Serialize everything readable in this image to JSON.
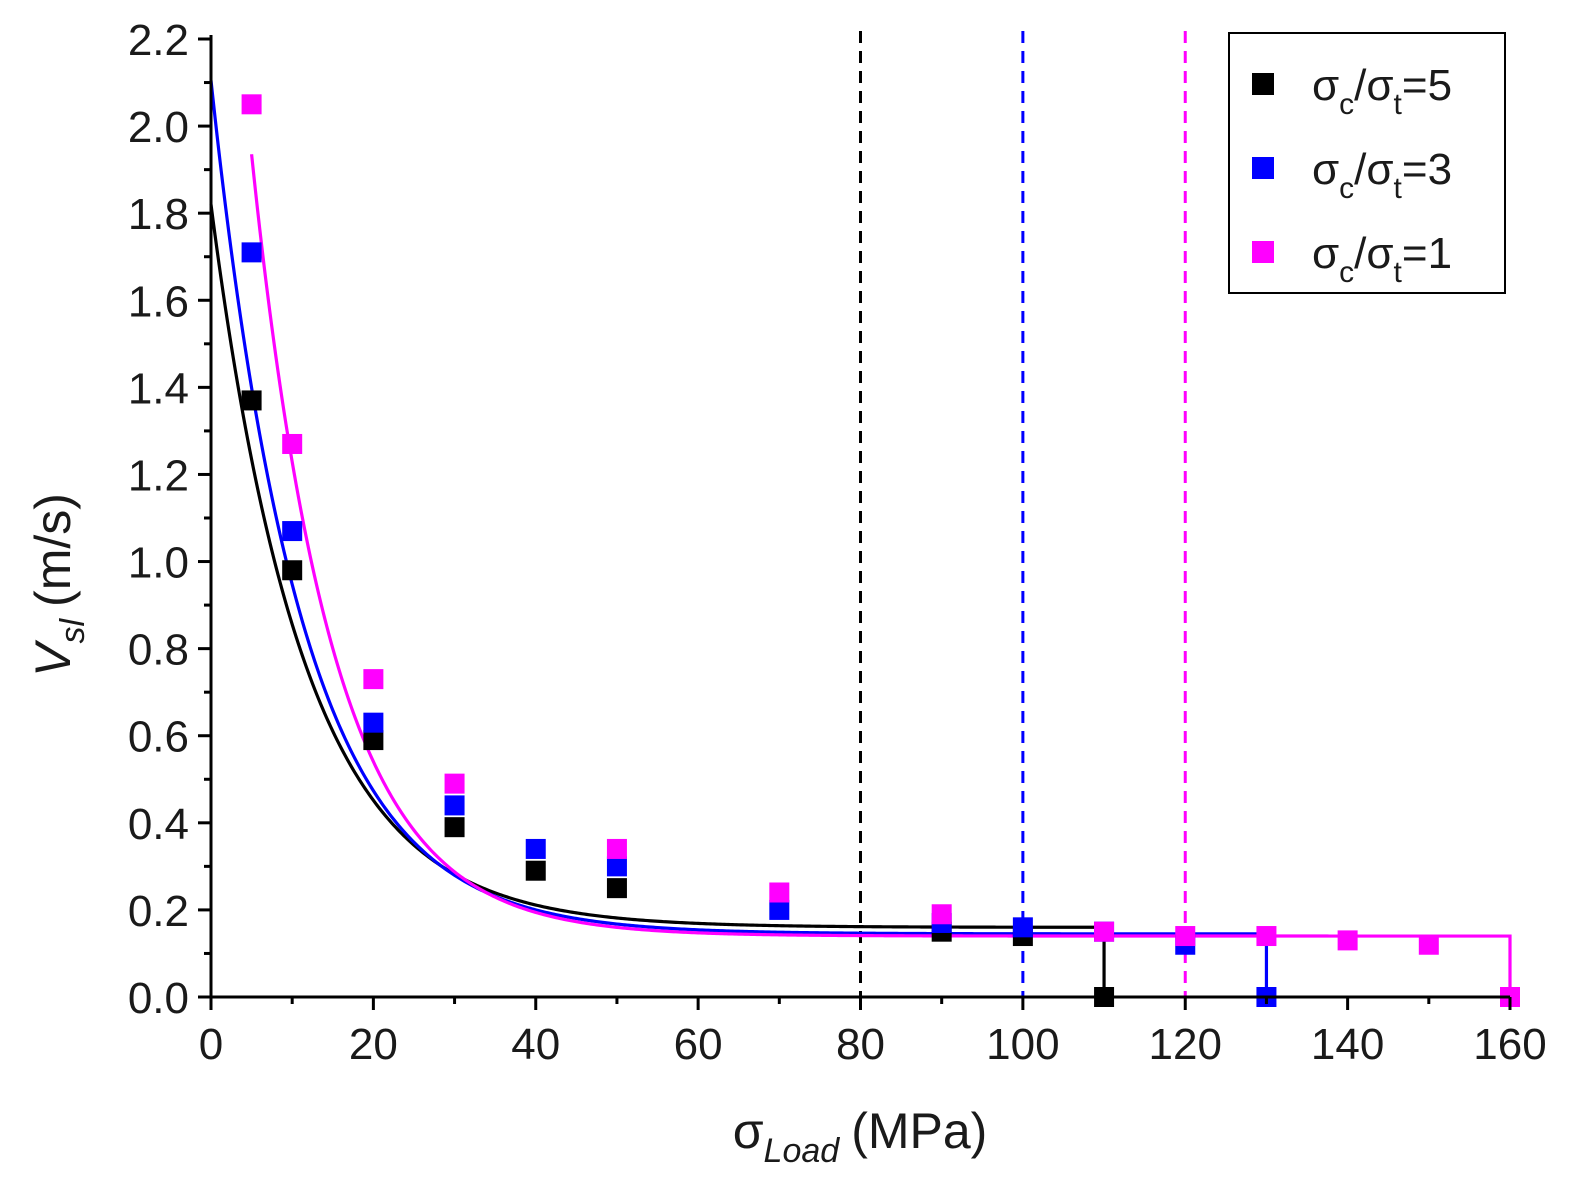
{
  "chart_data": {
    "type": "scatter",
    "xlabel": {
      "symbol": "σ",
      "sub": "Load",
      "unit": "(MPa)"
    },
    "ylabel": {
      "symbol": "V",
      "sub": "sl",
      "unit": "(m/s)"
    },
    "xlim": [
      0,
      160
    ],
    "ylim": [
      0,
      2.2
    ],
    "xticks": [
      0,
      20,
      40,
      60,
      80,
      100,
      120,
      140,
      160
    ],
    "xtick_labels": [
      "0",
      "20",
      "40",
      "60",
      "80",
      "100",
      "120",
      "140",
      "160"
    ],
    "yticks": [
      0.0,
      0.2,
      0.4,
      0.6,
      0.8,
      1.0,
      1.2,
      1.4,
      1.6,
      1.8,
      2.0,
      2.2
    ],
    "ytick_labels": [
      "0.0",
      "0.2",
      "0.4",
      "0.6",
      "0.8",
      "1.0",
      "1.2",
      "1.4",
      "1.6",
      "1.8",
      "2.0",
      "2.2"
    ],
    "grid": false,
    "legend_position": "top-right",
    "series": [
      {
        "name": "σc/σt=5",
        "label_parts": {
          "a": "σ",
          "a_sub": "c",
          "b": "/σ",
          "b_sub": "t",
          "tail": "=5"
        },
        "color": "#000000",
        "x": [
          5,
          10,
          20,
          30,
          40,
          50,
          90,
          100,
          110
        ],
        "y": [
          1.37,
          0.98,
          0.59,
          0.39,
          0.29,
          0.25,
          0.15,
          0.14,
          0.0
        ],
        "fit": {
          "y0": 0.16,
          "A": 1.66,
          "t": 11.5,
          "x_end": 110
        },
        "limit_line_x": 80
      },
      {
        "name": "σc/σt=3",
        "label_parts": {
          "a": "σ",
          "a_sub": "c",
          "b": "/σ",
          "b_sub": "t",
          "tail": "=3"
        },
        "color": "#0000ff",
        "x": [
          5,
          10,
          20,
          30,
          40,
          50,
          70,
          90,
          100,
          110,
          120,
          130
        ],
        "y": [
          1.71,
          1.07,
          0.63,
          0.44,
          0.34,
          0.3,
          0.2,
          0.17,
          0.16,
          0.15,
          0.12,
          0.0
        ],
        "fit": {
          "y0": 0.145,
          "A": 1.96,
          "t": 11.2,
          "x_end": 130
        },
        "limit_line_x": 100
      },
      {
        "name": "σc/σt=1",
        "label_parts": {
          "a": "σ",
          "a_sub": "c",
          "b": "/σ",
          "b_sub": "t",
          "tail": "=1"
        },
        "color": "#ff00ff",
        "x": [
          5,
          10,
          20,
          30,
          50,
          70,
          90,
          110,
          120,
          130,
          140,
          150,
          160
        ],
        "y": [
          2.05,
          1.27,
          0.73,
          0.49,
          0.34,
          0.24,
          0.19,
          0.15,
          0.14,
          0.14,
          0.13,
          0.12,
          0.0
        ],
        "fit": {
          "y0": 0.14,
          "A": 2.96,
          "t": 10.0,
          "x_start": 5,
          "x_end": 160
        },
        "limit_line_x": 120
      }
    ]
  }
}
